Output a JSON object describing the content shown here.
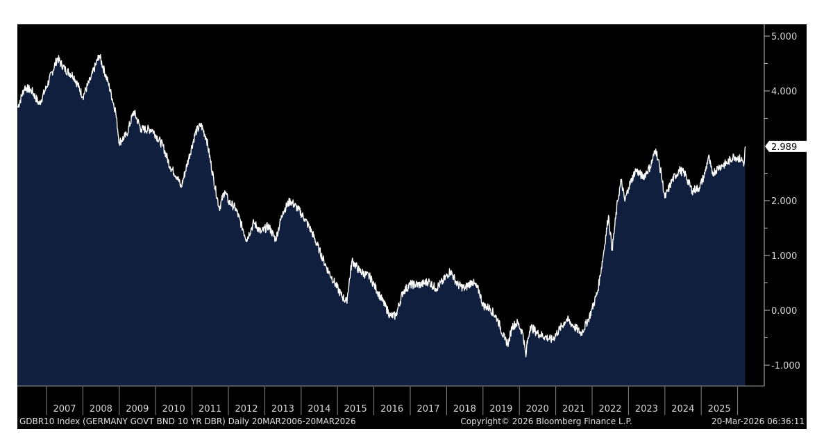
{
  "chart_data": {
    "type": "area",
    "title": "GDBR10 Index (GERMANY GOVT BND 10 YR DBR) Daily 20MAR2006-20MAR2026",
    "copyright": "Copyright© 2026 Bloomberg Finance L.P.",
    "timestamp": "20-Mar-2026 06:36:11",
    "last_value_label": "2.989",
    "xlim": [
      2006.21,
      2026.21
    ],
    "ylim": [
      -1.4,
      5.2
    ],
    "y_ticks": [
      {
        "value": 5,
        "label": "5.000"
      },
      {
        "value": 4,
        "label": "4.000"
      },
      {
        "value": 2,
        "label": "2.000"
      },
      {
        "value": 1,
        "label": "1.000"
      },
      {
        "value": 0,
        "label": "0.000"
      },
      {
        "value": -1,
        "label": "-1.000"
      }
    ],
    "x_tick_labels": [
      "2007",
      "2008",
      "2009",
      "2010",
      "2011",
      "2012",
      "2013",
      "2014",
      "2015",
      "2016",
      "2017",
      "2018",
      "2019",
      "2020",
      "2021",
      "2022",
      "2023",
      "2024",
      "2025"
    ],
    "colors": {
      "line": "#ffffff",
      "fill": "#0f1f3d",
      "background": "#000000",
      "axis": "#bfbfbf"
    },
    "series": [
      {
        "name": "GDBR10",
        "x": [
          2006.21,
          2006.4,
          2006.6,
          2006.8,
          2007.0,
          2007.3,
          2007.5,
          2007.75,
          2008.0,
          2008.2,
          2008.45,
          2008.7,
          2008.9,
          2009.0,
          2009.2,
          2009.4,
          2009.6,
          2009.9,
          2010.0,
          2010.2,
          2010.4,
          2010.6,
          2010.7,
          2010.9,
          2011.1,
          2011.25,
          2011.4,
          2011.6,
          2011.75,
          2011.9,
          2012.0,
          2012.2,
          2012.4,
          2012.5,
          2012.7,
          2012.9,
          2013.1,
          2013.3,
          2013.5,
          2013.7,
          2013.9,
          2014.1,
          2014.3,
          2014.5,
          2014.7,
          2014.9,
          2015.1,
          2015.25,
          2015.4,
          2015.6,
          2015.9,
          2016.0,
          2016.2,
          2016.45,
          2016.6,
          2016.8,
          2017.0,
          2017.3,
          2017.5,
          2017.7,
          2017.9,
          2018.1,
          2018.3,
          2018.5,
          2018.7,
          2018.9,
          2019.0,
          2019.2,
          2019.4,
          2019.6,
          2019.7,
          2019.8,
          2019.95,
          2020.1,
          2020.18,
          2020.2,
          2020.3,
          2020.5,
          2020.7,
          2020.9,
          2021.1,
          2021.3,
          2021.5,
          2021.7,
          2021.9,
          2022.0,
          2022.15,
          2022.3,
          2022.45,
          2022.55,
          2022.7,
          2022.8,
          2022.9,
          2023.0,
          2023.2,
          2023.4,
          2023.6,
          2023.75,
          2023.9,
          2024.0,
          2024.2,
          2024.4,
          2024.55,
          2024.75,
          2024.95,
          2025.1,
          2025.2,
          2025.3,
          2025.5,
          2025.7,
          2025.9,
          2026.1,
          2026.18,
          2026.21
        ],
        "y": [
          3.7,
          4.07,
          4.0,
          3.76,
          4.07,
          4.6,
          4.4,
          4.27,
          3.9,
          4.2,
          4.65,
          4.14,
          3.63,
          3.06,
          3.2,
          3.63,
          3.3,
          3.3,
          3.2,
          3.0,
          2.62,
          2.43,
          2.24,
          2.75,
          3.25,
          3.38,
          3.13,
          2.37,
          1.86,
          2.18,
          1.99,
          1.86,
          1.48,
          1.29,
          1.6,
          1.42,
          1.54,
          1.29,
          1.8,
          2.0,
          1.86,
          1.67,
          1.42,
          1.1,
          0.78,
          0.53,
          0.28,
          0.15,
          0.91,
          0.72,
          0.6,
          0.47,
          0.22,
          -0.1,
          -0.1,
          0.34,
          0.47,
          0.47,
          0.53,
          0.4,
          0.53,
          0.72,
          0.47,
          0.4,
          0.53,
          0.34,
          0.09,
          0.03,
          -0.16,
          -0.54,
          -0.6,
          -0.29,
          -0.23,
          -0.42,
          -0.85,
          -0.67,
          -0.29,
          -0.42,
          -0.48,
          -0.54,
          -0.35,
          -0.16,
          -0.29,
          -0.42,
          -0.16,
          0.03,
          0.34,
          0.97,
          1.73,
          1.1,
          1.99,
          2.37,
          1.99,
          2.24,
          2.56,
          2.43,
          2.62,
          2.94,
          2.49,
          2.05,
          2.37,
          2.56,
          2.49,
          2.18,
          2.24,
          2.49,
          2.81,
          2.49,
          2.62,
          2.68,
          2.81,
          2.75,
          2.68,
          2.989
        ]
      }
    ]
  }
}
